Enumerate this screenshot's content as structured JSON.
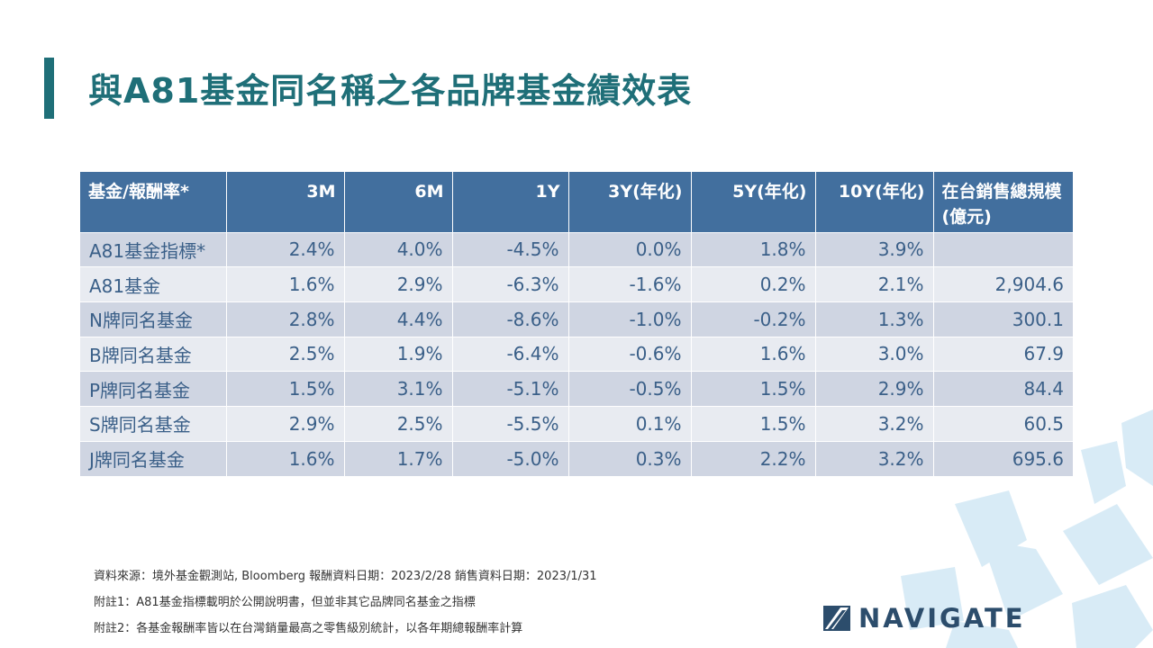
{
  "title": "與A81基金同名稱之各品牌基金績效表",
  "chart_data": {
    "type": "table",
    "columns": [
      "基金/報酬率*",
      "3M",
      "6M",
      "1Y",
      "3Y(年化)",
      "5Y(年化)",
      "10Y(年化)",
      "在台銷售總規模(億元)"
    ],
    "rows": [
      [
        "A81基金指標*",
        "2.4%",
        "4.0%",
        "-4.5%",
        "0.0%",
        "1.8%",
        "3.9%",
        ""
      ],
      [
        "A81基金",
        "1.6%",
        "2.9%",
        "-6.3%",
        "-1.6%",
        "0.2%",
        "2.1%",
        "2,904.6"
      ],
      [
        "N牌同名基金",
        "2.8%",
        "4.4%",
        "-8.6%",
        "-1.0%",
        "-0.2%",
        "1.3%",
        "300.1"
      ],
      [
        "B牌同名基金",
        "2.5%",
        "1.9%",
        "-6.4%",
        "-0.6%",
        "1.6%",
        "3.0%",
        "67.9"
      ],
      [
        "P牌同名基金",
        "1.5%",
        "3.1%",
        "-5.1%",
        "-0.5%",
        "1.5%",
        "2.9%",
        "84.4"
      ],
      [
        "S牌同名基金",
        "2.9%",
        "2.5%",
        "-5.5%",
        "0.1%",
        "1.5%",
        "3.2%",
        "60.5"
      ],
      [
        "J牌同名基金",
        "1.6%",
        "1.7%",
        "-5.0%",
        "0.3%",
        "2.2%",
        "3.2%",
        "695.6"
      ]
    ]
  },
  "notes": [
    "資料來源：境外基金觀測站, Bloomberg   報酬資料日期：2023/2/28   銷售資料日期：2023/1/31",
    "附註1：A81基金指標載明於公開說明書，但並非其它品牌同名基金之指標",
    "附註2：各基金報酬率皆以在台灣銷量最高之零售級別統計，以各年期總報酬率計算"
  ],
  "logo": {
    "text": "NAVIGATE"
  },
  "colors": {
    "title": "#1f6f78",
    "header_bg": "#426f9e",
    "row_odd": "#cfd5e2",
    "row_even": "#e8ebf1",
    "cell_text": "#3a5f88",
    "deco": "#d6eaf6",
    "logo": "#2c4d6c"
  }
}
